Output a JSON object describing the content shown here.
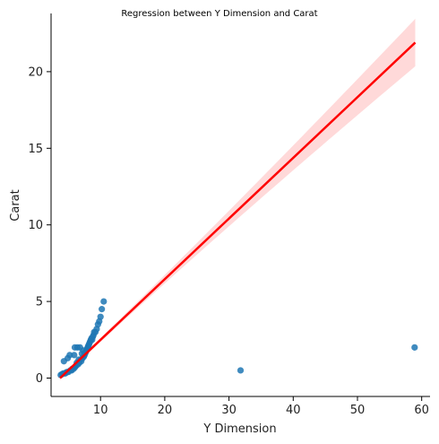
{
  "chart_data": {
    "type": "scatter",
    "title": "Regression between Y Dimension and Carat",
    "xlabel": "Y Dimension",
    "ylabel": "Carat",
    "xlim": [
      2.3,
      61.3
    ],
    "ylim": [
      -1.2,
      23.8
    ],
    "xticks": [
      10,
      20,
      30,
      40,
      50,
      60
    ],
    "yticks": [
      0,
      5,
      10,
      15,
      20
    ],
    "grid": false,
    "colors": {
      "points": "#1f77b4",
      "regression_line": "#ff0000",
      "confidence_band": "#ffcccc"
    },
    "regression": {
      "x": [
        3.7,
        59.0
      ],
      "y": [
        0.0,
        21.9
      ],
      "ci_upper_at_x59": 23.4,
      "ci_lower_at_x59": 20.3
    },
    "points": [
      [
        3.8,
        0.2
      ],
      [
        4.0,
        0.25
      ],
      [
        4.2,
        0.3
      ],
      [
        4.3,
        1.1
      ],
      [
        4.5,
        0.3
      ],
      [
        4.6,
        0.35
      ],
      [
        4.8,
        0.4
      ],
      [
        4.9,
        1.3
      ],
      [
        5.0,
        0.4
      ],
      [
        5.2,
        1.5
      ],
      [
        5.3,
        0.5
      ],
      [
        5.5,
        0.5
      ],
      [
        5.6,
        0.6
      ],
      [
        5.8,
        0.6
      ],
      [
        5.9,
        1.5
      ],
      [
        6.0,
        0.7
      ],
      [
        6.0,
        2.0
      ],
      [
        6.2,
        0.8
      ],
      [
        6.3,
        1.0
      ],
      [
        6.4,
        2.0
      ],
      [
        6.5,
        0.9
      ],
      [
        6.6,
        1.2
      ],
      [
        6.7,
        1.0
      ],
      [
        6.8,
        2.0
      ],
      [
        6.9,
        1.2
      ],
      [
        7.0,
        1.1
      ],
      [
        7.1,
        1.6
      ],
      [
        7.2,
        1.3
      ],
      [
        7.3,
        1.8
      ],
      [
        7.4,
        1.4
      ],
      [
        7.5,
        1.5
      ],
      [
        7.6,
        1.6
      ],
      [
        7.7,
        1.7
      ],
      [
        7.8,
        1.8
      ],
      [
        7.9,
        1.9
      ],
      [
        8.0,
        2.0
      ],
      [
        8.1,
        2.1
      ],
      [
        8.2,
        2.2
      ],
      [
        8.3,
        2.3
      ],
      [
        8.4,
        2.4
      ],
      [
        8.5,
        2.5
      ],
      [
        8.6,
        2.6
      ],
      [
        8.7,
        2.5
      ],
      [
        8.8,
        2.7
      ],
      [
        8.9,
        2.8
      ],
      [
        9.0,
        3.0
      ],
      [
        9.2,
        3.0
      ],
      [
        9.4,
        3.2
      ],
      [
        9.6,
        3.5
      ],
      [
        9.8,
        3.7
      ],
      [
        10.0,
        4.0
      ],
      [
        10.2,
        4.5
      ],
      [
        10.5,
        5.0
      ],
      [
        31.8,
        0.5
      ],
      [
        58.9,
        2.0
      ]
    ]
  }
}
